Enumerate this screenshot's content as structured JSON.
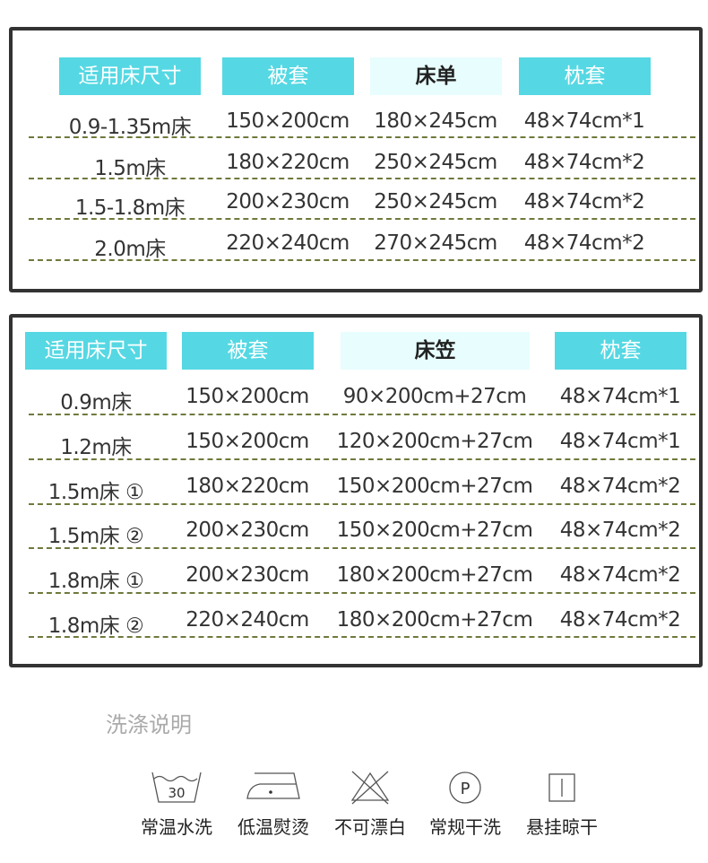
{
  "table1": {
    "headers": [
      "适用床尺寸",
      "被套",
      "床单",
      "枕套"
    ],
    "rows": [
      [
        "0.9-1.35m床",
        "150×200cm",
        "180×245cm",
        "48×74cm*1"
      ],
      [
        "1.5m床",
        "180×220cm",
        "250×245cm",
        "48×74cm*2"
      ],
      [
        "1.5-1.8m床",
        "200×230cm",
        "250×245cm",
        "48×74cm*2"
      ],
      [
        "2.0m床",
        "220×240cm",
        "270×245cm",
        "48×74cm*2"
      ]
    ]
  },
  "table2": {
    "headers": [
      "适用床尺寸",
      "被套",
      "床笠",
      "枕套"
    ],
    "rows": [
      [
        "0.9m床",
        "150×200cm",
        "90×200cm+27cm",
        "48×74cm*1"
      ],
      [
        "1.2m床",
        "150×200cm",
        "120×200cm+27cm",
        "48×74cm*1"
      ],
      [
        "1.5m床 ①",
        "180×220cm",
        "150×200cm+27cm",
        "48×74cm*2"
      ],
      [
        "1.5m床 ②",
        "200×230cm",
        "150×200cm+27cm",
        "48×74cm*2"
      ],
      [
        "1.8m床 ①",
        "200×230cm",
        "180×200cm+27cm",
        "48×74cm*2"
      ],
      [
        "1.8m床 ②",
        "220×240cm",
        "180×200cm+27cm",
        "48×74cm*2"
      ]
    ]
  },
  "care": {
    "title": "洗涤说明",
    "items": [
      {
        "icon": "wash-30-icon",
        "label": "常温水洗",
        "temp": "30"
      },
      {
        "icon": "iron-low-icon",
        "label": "低温熨烫"
      },
      {
        "icon": "no-bleach-icon",
        "label": "不可漂白"
      },
      {
        "icon": "dry-clean-p-icon",
        "label": "常规干洗",
        "letter": "P"
      },
      {
        "icon": "hang-dry-icon",
        "label": "悬挂晾干"
      }
    ]
  },
  "colors": {
    "header": "#55d8e3",
    "header_alt": "#e8fdfd",
    "border": "#333333",
    "dash": "#6e7a3c"
  }
}
